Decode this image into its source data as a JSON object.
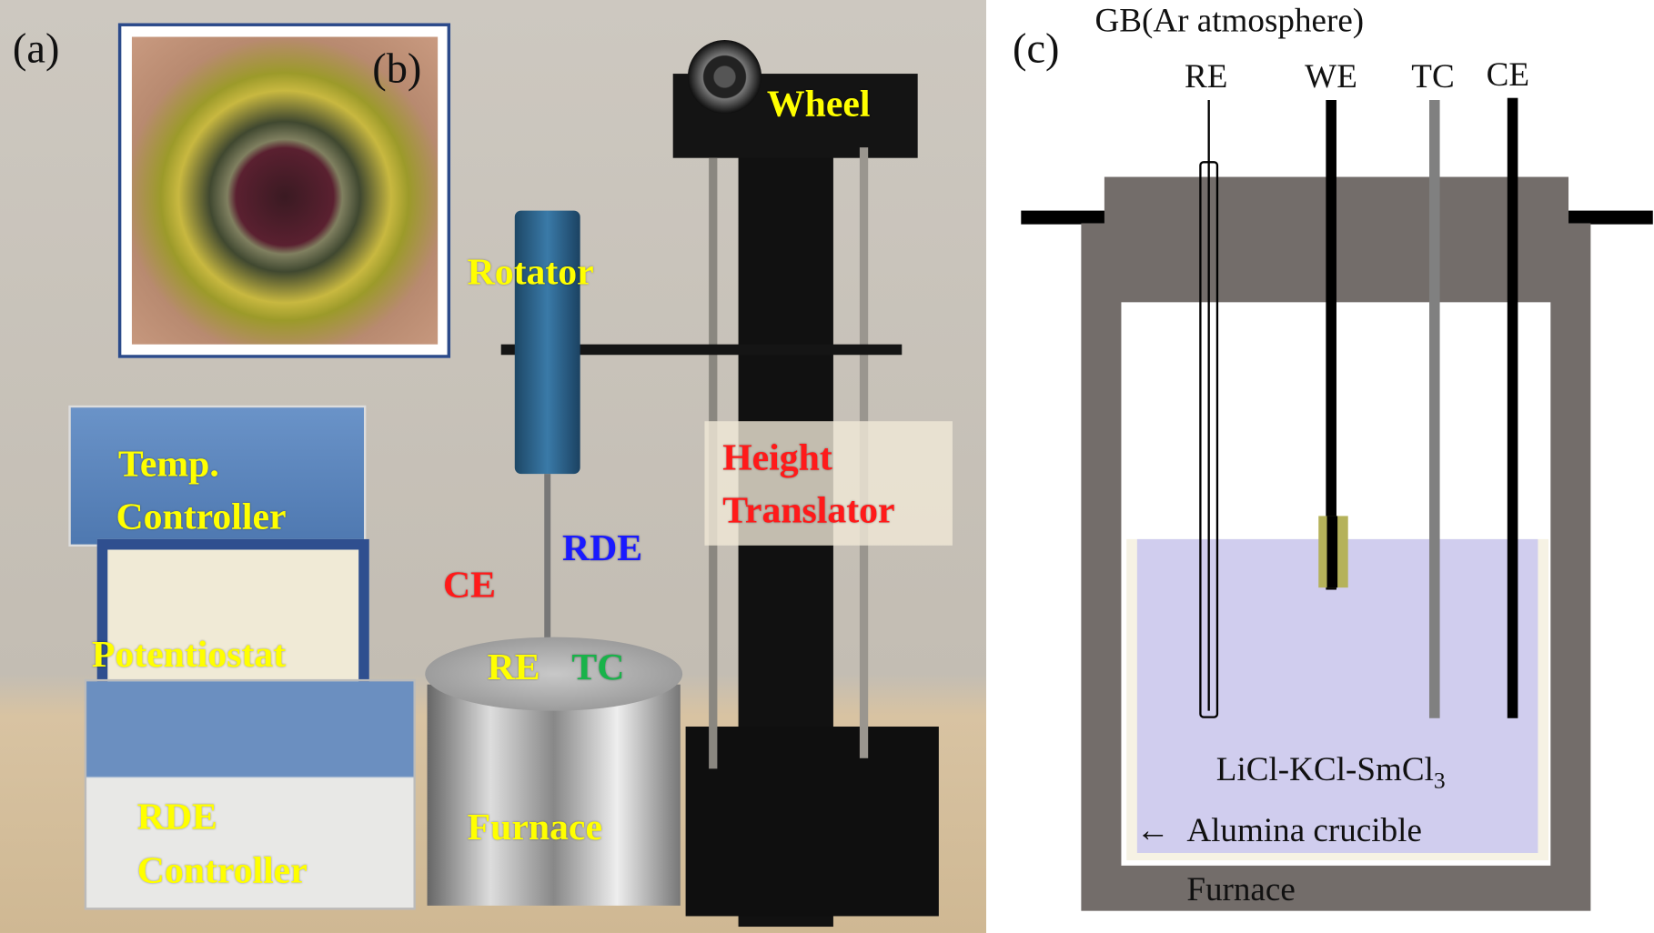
{
  "panel_a": {
    "tag": "(a)",
    "labels": {
      "wheel": "Wheel",
      "rotator": "Rotator",
      "height_translator_line1": "Height",
      "height_translator_line2": "Translator",
      "temp_line1": "Temp.",
      "temp_line2": "Controller",
      "potentiostat": "Potentiostat",
      "rde_ctrl_line1": "RDE",
      "rde_ctrl_line2": "Controller",
      "rde": "RDE",
      "ce": "CE",
      "re": "RE",
      "tc": "TC",
      "furnace": "Furnace"
    },
    "colors": {
      "yellow": "#ffff00",
      "red": "#ff1a1a",
      "blue": "#1a1aff",
      "green": "#19b34a"
    }
  },
  "panel_b": {
    "tag": "(b)"
  },
  "panel_c": {
    "tag": "(c)",
    "atmosphere": "GB(Ar atmosphere)",
    "electrodes": [
      "RE",
      "WE",
      "TC",
      "CE"
    ],
    "melt": "LiCl-KCl-SmCl",
    "melt_subscript": "3",
    "crucible": "Alumina crucible",
    "furnace": "Furnace",
    "colors": {
      "furnace": "#736d6a",
      "melt": "#d0cdee",
      "crucible": "#f6f2e4",
      "we_tip": "#b5b25a",
      "tc": "#808080"
    }
  }
}
